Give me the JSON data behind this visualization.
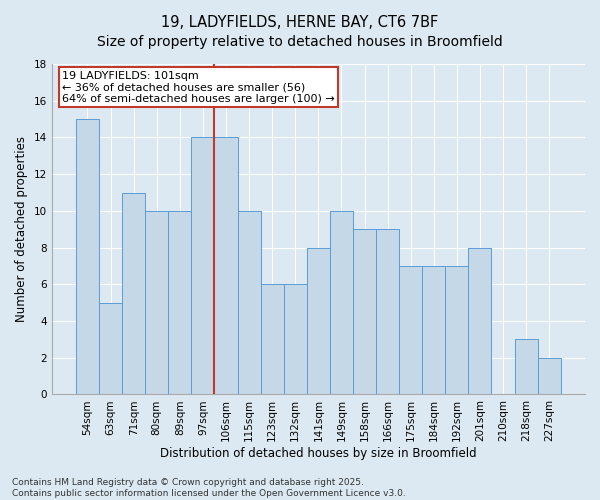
{
  "title": "19, LADYFIELDS, HERNE BAY, CT6 7BF",
  "subtitle": "Size of property relative to detached houses in Broomfield",
  "xlabel": "Distribution of detached houses by size in Broomfield",
  "ylabel": "Number of detached properties",
  "categories": [
    "54sqm",
    "63sqm",
    "71sqm",
    "80sqm",
    "89sqm",
    "97sqm",
    "106sqm",
    "115sqm",
    "123sqm",
    "132sqm",
    "141sqm",
    "149sqm",
    "158sqm",
    "166sqm",
    "175sqm",
    "184sqm",
    "192sqm",
    "201sqm",
    "210sqm",
    "218sqm",
    "227sqm"
  ],
  "values": [
    15,
    5,
    11,
    10,
    10,
    14,
    14,
    10,
    6,
    6,
    8,
    10,
    9,
    9,
    7,
    7,
    7,
    8,
    0,
    3,
    2
  ],
  "vline_index": 6,
  "bar_color": "#c5d8e8",
  "bar_edge_color": "#5b9bd5",
  "vline_color": "#c0392b",
  "annotation_box_color": "#c0392b",
  "annotation_text": "19 LADYFIELDS: 101sqm\n← 36% of detached houses are smaller (56)\n64% of semi-detached houses are larger (100) →",
  "ylim": [
    0,
    18
  ],
  "yticks": [
    0,
    2,
    4,
    6,
    8,
    10,
    12,
    14,
    16,
    18
  ],
  "background_color": "#dce9f2",
  "plot_bg_color": "#dce9f2",
  "grid_color": "#ffffff",
  "footnote": "Contains HM Land Registry data © Crown copyright and database right 2025.\nContains public sector information licensed under the Open Government Licence v3.0.",
  "title_fontsize": 10.5,
  "xlabel_fontsize": 8.5,
  "ylabel_fontsize": 8.5,
  "annotation_fontsize": 8,
  "footnote_fontsize": 6.5,
  "tick_fontsize": 7.5
}
